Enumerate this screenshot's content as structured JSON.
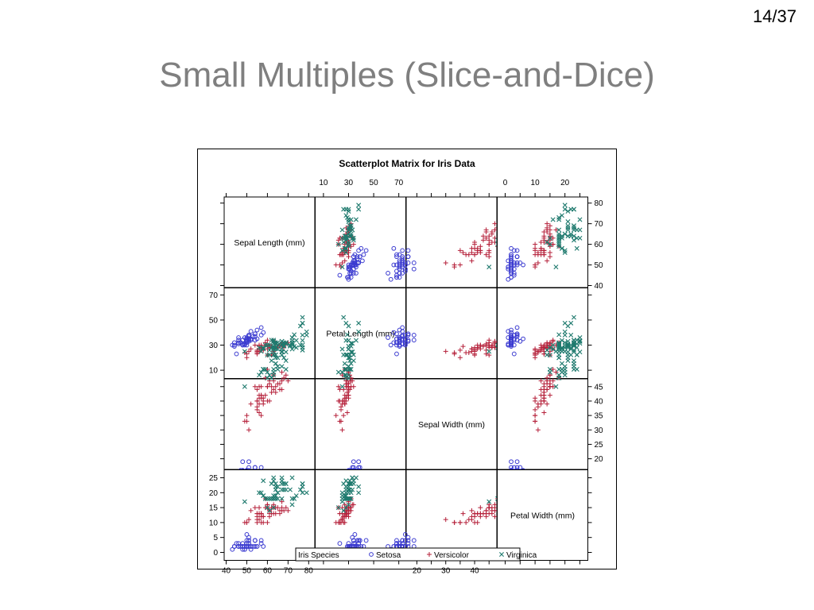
{
  "slide": {
    "number": "14/37",
    "title": "Small Multiples (Slice-and-Dice)"
  },
  "colors": {
    "setosa": "#3b3bd0",
    "versicolor": "#b5203a",
    "virginica": "#1f7a6e",
    "title": "#7f7f7f"
  },
  "chart_data": {
    "type": "scatter",
    "title": "Scatterplot Matrix for Iris Data",
    "variables": [
      "Sepal Length (mm)",
      "Petal Length (mm)",
      "Sepal Width (mm)",
      "Petal Width (mm)"
    ],
    "ranges": [
      [
        40,
        82
      ],
      [
        5,
        74
      ],
      [
        17,
        47
      ],
      [
        -2,
        27
      ]
    ],
    "ticks": [
      [
        40,
        50,
        60,
        70,
        80
      ],
      [
        10,
        30,
        50,
        70
      ],
      [
        20,
        25,
        30,
        35,
        40,
        45
      ],
      [
        0,
        5,
        10,
        15,
        20,
        25
      ]
    ],
    "tick_labels": {
      "top": [
        [
          "10",
          "30",
          "50",
          "70"
        ],
        [
          "0",
          "10",
          "20"
        ]
      ],
      "bottom": [
        [
          "40",
          "50",
          "60",
          "70",
          "80"
        ],
        [
          "20",
          "30",
          "40"
        ]
      ],
      "left": [
        [
          "70",
          "50",
          "30",
          "10"
        ],
        [
          "25",
          "20",
          "15",
          "10",
          "5",
          "0"
        ]
      ],
      "right": [
        [
          "80",
          "70",
          "60",
          "50",
          "40"
        ],
        [
          "45",
          "40",
          "35",
          "30",
          "25",
          "20"
        ]
      ]
    },
    "legend": {
      "title": "Iris Species",
      "placement": "bottom",
      "entries": [
        {
          "name": "Setosa",
          "marker": "circle"
        },
        {
          "name": "Versicolor",
          "marker": "plus"
        },
        {
          "name": "Virginica",
          "marker": "x"
        }
      ]
    },
    "series": [
      {
        "name": "Setosa",
        "marker": "circle",
        "points": [
          [
            51,
            35,
            14,
            2
          ],
          [
            49,
            30,
            14,
            2
          ],
          [
            47,
            32,
            13,
            2
          ],
          [
            46,
            31,
            15,
            2
          ],
          [
            50,
            36,
            14,
            2
          ],
          [
            54,
            39,
            17,
            4
          ],
          [
            46,
            34,
            14,
            3
          ],
          [
            50,
            34,
            15,
            2
          ],
          [
            44,
            29,
            14,
            2
          ],
          [
            49,
            31,
            15,
            1
          ],
          [
            54,
            37,
            15,
            2
          ],
          [
            48,
            34,
            16,
            2
          ],
          [
            48,
            30,
            14,
            1
          ],
          [
            43,
            30,
            11,
            1
          ],
          [
            58,
            40,
            12,
            2
          ],
          [
            57,
            44,
            15,
            4
          ],
          [
            54,
            39,
            13,
            4
          ],
          [
            51,
            35,
            14,
            3
          ],
          [
            57,
            38,
            17,
            3
          ],
          [
            51,
            38,
            15,
            3
          ],
          [
            54,
            34,
            17,
            2
          ],
          [
            51,
            37,
            15,
            4
          ],
          [
            46,
            36,
            10,
            2
          ],
          [
            51,
            33,
            17,
            5
          ],
          [
            48,
            34,
            19,
            2
          ],
          [
            50,
            30,
            16,
            2
          ],
          [
            50,
            34,
            16,
            4
          ],
          [
            52,
            35,
            15,
            2
          ],
          [
            52,
            34,
            14,
            2
          ],
          [
            47,
            32,
            16,
            2
          ],
          [
            48,
            31,
            16,
            2
          ],
          [
            54,
            34,
            15,
            4
          ],
          [
            52,
            41,
            15,
            1
          ],
          [
            55,
            42,
            14,
            2
          ],
          [
            49,
            31,
            15,
            2
          ],
          [
            50,
            32,
            12,
            2
          ],
          [
            55,
            35,
            13,
            2
          ],
          [
            49,
            36,
            14,
            1
          ],
          [
            44,
            30,
            13,
            2
          ],
          [
            51,
            34,
            15,
            2
          ],
          [
            50,
            35,
            13,
            3
          ],
          [
            45,
            23,
            13,
            3
          ],
          [
            44,
            32,
            13,
            2
          ],
          [
            50,
            35,
            16,
            6
          ],
          [
            51,
            38,
            19,
            4
          ],
          [
            48,
            30,
            14,
            3
          ],
          [
            51,
            38,
            16,
            2
          ],
          [
            46,
            32,
            14,
            2
          ],
          [
            53,
            37,
            15,
            2
          ],
          [
            50,
            33,
            14,
            2
          ]
        ]
      },
      {
        "name": "Versicolor",
        "marker": "plus",
        "points": [
          [
            70,
            32,
            47,
            14
          ],
          [
            64,
            32,
            45,
            15
          ],
          [
            69,
            31,
            49,
            15
          ],
          [
            55,
            23,
            40,
            13
          ],
          [
            65,
            28,
            46,
            15
          ],
          [
            57,
            28,
            45,
            13
          ],
          [
            63,
            33,
            47,
            16
          ],
          [
            49,
            24,
            33,
            10
          ],
          [
            66,
            29,
            46,
            13
          ],
          [
            52,
            27,
            39,
            14
          ],
          [
            50,
            20,
            35,
            10
          ],
          [
            59,
            30,
            42,
            15
          ],
          [
            60,
            22,
            40,
            10
          ],
          [
            61,
            29,
            47,
            14
          ],
          [
            56,
            29,
            36,
            13
          ],
          [
            67,
            31,
            44,
            14
          ],
          [
            56,
            30,
            45,
            15
          ],
          [
            58,
            27,
            41,
            10
          ],
          [
            62,
            22,
            45,
            15
          ],
          [
            56,
            25,
            39,
            11
          ],
          [
            59,
            32,
            48,
            18
          ],
          [
            61,
            28,
            40,
            13
          ],
          [
            63,
            25,
            49,
            15
          ],
          [
            61,
            28,
            47,
            12
          ],
          [
            64,
            29,
            43,
            13
          ],
          [
            66,
            30,
            44,
            14
          ],
          [
            68,
            28,
            48,
            14
          ],
          [
            67,
            30,
            50,
            17
          ],
          [
            60,
            29,
            45,
            15
          ],
          [
            57,
            26,
            35,
            10
          ],
          [
            55,
            24,
            38,
            11
          ],
          [
            55,
            24,
            37,
            10
          ],
          [
            58,
            27,
            39,
            12
          ],
          [
            60,
            27,
            51,
            16
          ],
          [
            54,
            30,
            45,
            15
          ],
          [
            60,
            34,
            45,
            16
          ],
          [
            67,
            31,
            47,
            15
          ],
          [
            63,
            23,
            44,
            13
          ],
          [
            56,
            30,
            41,
            13
          ],
          [
            55,
            25,
            40,
            13
          ],
          [
            55,
            26,
            44,
            12
          ],
          [
            61,
            30,
            46,
            14
          ],
          [
            58,
            26,
            40,
            12
          ],
          [
            50,
            23,
            33,
            10
          ],
          [
            56,
            27,
            42,
            13
          ],
          [
            57,
            30,
            42,
            12
          ],
          [
            57,
            29,
            42,
            13
          ],
          [
            62,
            29,
            43,
            13
          ],
          [
            51,
            25,
            30,
            11
          ],
          [
            57,
            28,
            41,
            13
          ]
        ]
      },
      {
        "name": "Virginica",
        "marker": "x",
        "points": [
          [
            63,
            33,
            60,
            25
          ],
          [
            58,
            27,
            51,
            19
          ],
          [
            71,
            30,
            59,
            21
          ],
          [
            63,
            29,
            56,
            18
          ],
          [
            65,
            30,
            58,
            22
          ],
          [
            76,
            30,
            66,
            21
          ],
          [
            49,
            25,
            45,
            17
          ],
          [
            73,
            29,
            63,
            18
          ],
          [
            67,
            25,
            58,
            18
          ],
          [
            72,
            36,
            61,
            25
          ],
          [
            65,
            32,
            51,
            20
          ],
          [
            64,
            27,
            53,
            19
          ],
          [
            68,
            30,
            55,
            21
          ],
          [
            57,
            25,
            50,
            20
          ],
          [
            58,
            28,
            51,
            24
          ],
          [
            64,
            32,
            53,
            23
          ],
          [
            65,
            30,
            55,
            18
          ],
          [
            77,
            38,
            67,
            22
          ],
          [
            77,
            26,
            69,
            23
          ],
          [
            60,
            22,
            50,
            15
          ],
          [
            69,
            32,
            57,
            23
          ],
          [
            56,
            28,
            49,
            20
          ],
          [
            77,
            28,
            67,
            20
          ],
          [
            63,
            27,
            49,
            18
          ],
          [
            67,
            33,
            57,
            21
          ],
          [
            72,
            32,
            60,
            18
          ],
          [
            62,
            28,
            48,
            18
          ],
          [
            61,
            30,
            49,
            18
          ],
          [
            64,
            28,
            56,
            21
          ],
          [
            72,
            30,
            58,
            16
          ],
          [
            74,
            28,
            61,
            19
          ],
          [
            79,
            38,
            64,
            20
          ],
          [
            64,
            28,
            56,
            22
          ],
          [
            63,
            28,
            51,
            15
          ],
          [
            61,
            26,
            56,
            14
          ],
          [
            77,
            30,
            61,
            23
          ],
          [
            63,
            34,
            56,
            24
          ],
          [
            64,
            31,
            55,
            18
          ],
          [
            60,
            30,
            48,
            18
          ],
          [
            69,
            31,
            54,
            21
          ],
          [
            67,
            31,
            56,
            24
          ],
          [
            69,
            31,
            51,
            23
          ],
          [
            58,
            27,
            51,
            19
          ],
          [
            68,
            32,
            59,
            23
          ],
          [
            67,
            33,
            57,
            25
          ],
          [
            67,
            30,
            52,
            23
          ],
          [
            63,
            25,
            50,
            19
          ],
          [
            65,
            30,
            52,
            20
          ],
          [
            62,
            34,
            54,
            23
          ],
          [
            59,
            30,
            51,
            18
          ]
        ]
      }
    ]
  }
}
